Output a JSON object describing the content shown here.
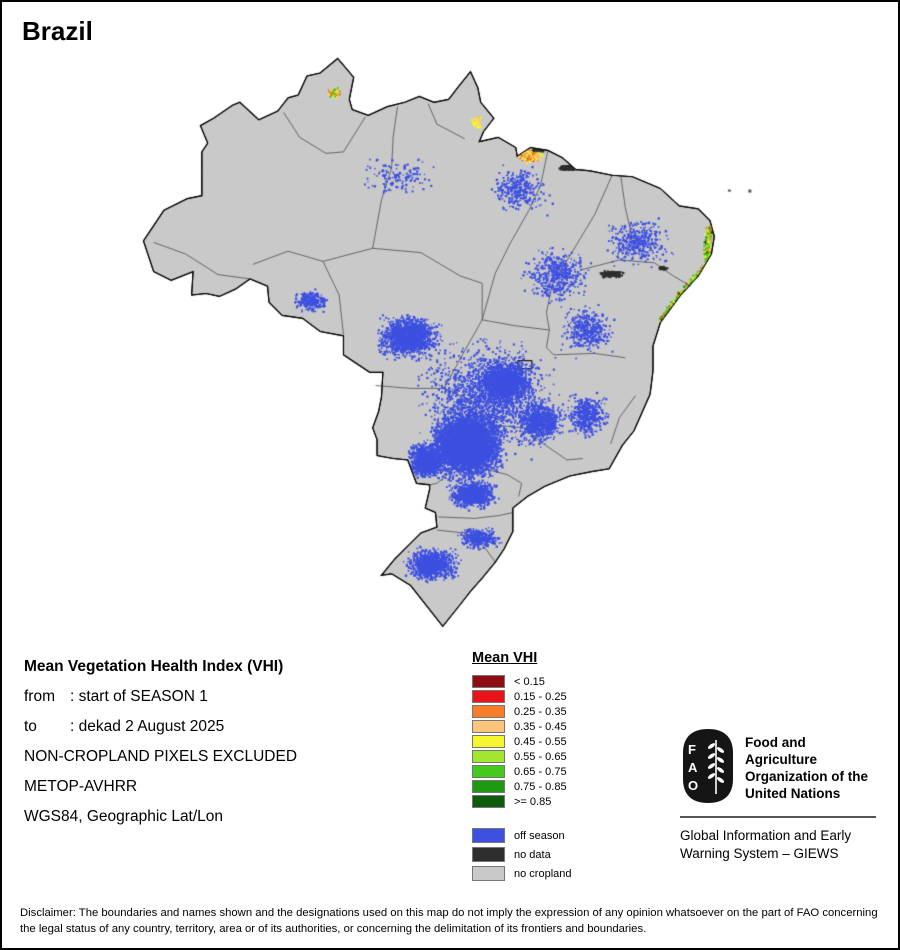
{
  "title": "Brazil",
  "info": {
    "heading": "Mean Vegetation Health Index (VHI)",
    "rows": [
      {
        "label": "from",
        "value": ": start of SEASON 1"
      },
      {
        "label": "to",
        "value": ": dekad 2 August 2025"
      }
    ],
    "lines": [
      "NON-CROPLAND PIXELS EXCLUDED",
      "METOP-AVHRR",
      "WGS84, Geographic Lat/Lon"
    ]
  },
  "legend": {
    "title": "Mean VHI",
    "vhi_classes": [
      {
        "label": "< 0.15",
        "color": "#8e0d12"
      },
      {
        "label": "0.15 - 0.25",
        "color": "#e81418"
      },
      {
        "label": "0.25 - 0.35",
        "color": "#f87d2a"
      },
      {
        "label": "0.35 - 0.45",
        "color": "#fdc47e"
      },
      {
        "label": "0.45 - 0.55",
        "color": "#f6f62e"
      },
      {
        "label": "0.55 - 0.65",
        "color": "#a2e62f"
      },
      {
        "label": "0.65 - 0.75",
        "color": "#44ca1d"
      },
      {
        "label": "0.75 - 0.85",
        "color": "#1e9a12"
      },
      {
        "label": ">= 0.85",
        "color": "#0c5c0c"
      }
    ],
    "other_classes": [
      {
        "label": "off season",
        "color": "#3d50e0"
      },
      {
        "label": "no data",
        "color": "#2e2e2e"
      },
      {
        "label": "no cropland",
        "color": "#c9c9c9"
      }
    ]
  },
  "footer": {
    "fao_acronym": "FAO",
    "org_name": "Food and Agriculture Organization of the United Nations",
    "giews": "Global Information and Early Warning System – GIEWS"
  },
  "disclaimer": "Disclaimer: The boundaries and names shown and the designations used on this map do not imply the expression of any opinion whatsoever on the part of FAO concerning the legal status of any country, territory, area or of its authorities, or concerning the delimitation of its frontiers and boundaries."
}
